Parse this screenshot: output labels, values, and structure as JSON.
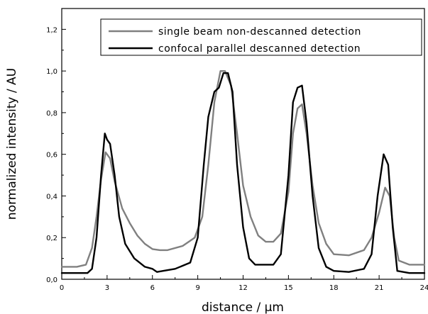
{
  "chart_data": {
    "type": "line",
    "xlabel": "distance / µm",
    "ylabel": "normalized intensity / AU",
    "xlim": [
      0,
      24
    ],
    "ylim": [
      0,
      1.3
    ],
    "x_ticks": [
      0,
      3,
      6,
      9,
      12,
      15,
      18,
      21,
      24
    ],
    "x_tick_labels": [
      "0",
      "3",
      "6",
      "9",
      "12",
      "15",
      "18",
      "21",
      "24"
    ],
    "y_ticks": [
      0.0,
      0.2,
      0.4,
      0.6,
      0.8,
      1.0,
      1.2
    ],
    "y_tick_labels": [
      "0,0",
      "0,2",
      "0,4",
      "0,6",
      "0,8",
      "1,0",
      "1,2"
    ],
    "legend_position": "top-right",
    "grid": false,
    "series": [
      {
        "name": "single beam non-descanned detection",
        "color": "#808080",
        "points": [
          [
            0,
            0.06
          ],
          [
            1.0,
            0.06
          ],
          [
            1.6,
            0.07
          ],
          [
            2.0,
            0.15
          ],
          [
            2.3,
            0.3
          ],
          [
            2.6,
            0.48
          ],
          [
            2.9,
            0.61
          ],
          [
            3.2,
            0.58
          ],
          [
            3.5,
            0.47
          ],
          [
            4.0,
            0.34
          ],
          [
            4.5,
            0.27
          ],
          [
            5.0,
            0.21
          ],
          [
            5.5,
            0.17
          ],
          [
            6.0,
            0.145
          ],
          [
            6.5,
            0.14
          ],
          [
            7.0,
            0.14
          ],
          [
            8.0,
            0.16
          ],
          [
            8.8,
            0.2
          ],
          [
            9.3,
            0.3
          ],
          [
            9.7,
            0.55
          ],
          [
            10.1,
            0.85
          ],
          [
            10.5,
            1.0
          ],
          [
            10.8,
            1.0
          ],
          [
            11.2,
            0.93
          ],
          [
            11.6,
            0.7
          ],
          [
            12.0,
            0.45
          ],
          [
            12.5,
            0.3
          ],
          [
            13.0,
            0.21
          ],
          [
            13.5,
            0.18
          ],
          [
            14.0,
            0.18
          ],
          [
            14.5,
            0.22
          ],
          [
            15.0,
            0.42
          ],
          [
            15.3,
            0.7
          ],
          [
            15.6,
            0.82
          ],
          [
            15.9,
            0.84
          ],
          [
            16.2,
            0.7
          ],
          [
            16.6,
            0.45
          ],
          [
            17.0,
            0.27
          ],
          [
            17.5,
            0.17
          ],
          [
            18.0,
            0.12
          ],
          [
            19.0,
            0.115
          ],
          [
            20.0,
            0.14
          ],
          [
            20.5,
            0.2
          ],
          [
            21.0,
            0.32
          ],
          [
            21.4,
            0.44
          ],
          [
            21.7,
            0.4
          ],
          [
            22.0,
            0.2
          ],
          [
            22.3,
            0.09
          ],
          [
            23.0,
            0.07
          ],
          [
            24,
            0.07
          ]
        ]
      },
      {
        "name": "confocal parallel descanned detection",
        "color": "#000000",
        "points": [
          [
            0,
            0.03
          ],
          [
            1.7,
            0.03
          ],
          [
            2.0,
            0.05
          ],
          [
            2.3,
            0.2
          ],
          [
            2.6,
            0.5
          ],
          [
            2.85,
            0.7
          ],
          [
            3.0,
            0.67
          ],
          [
            3.2,
            0.65
          ],
          [
            3.5,
            0.5
          ],
          [
            3.8,
            0.3
          ],
          [
            4.2,
            0.17
          ],
          [
            4.8,
            0.1
          ],
          [
            5.5,
            0.06
          ],
          [
            6.0,
            0.05
          ],
          [
            6.3,
            0.035
          ],
          [
            6.7,
            0.04
          ],
          [
            7.5,
            0.05
          ],
          [
            8.5,
            0.08
          ],
          [
            9.0,
            0.2
          ],
          [
            9.4,
            0.55
          ],
          [
            9.7,
            0.78
          ],
          [
            10.1,
            0.9
          ],
          [
            10.4,
            0.92
          ],
          [
            10.7,
            0.99
          ],
          [
            11.0,
            0.99
          ],
          [
            11.3,
            0.9
          ],
          [
            11.6,
            0.55
          ],
          [
            12.0,
            0.25
          ],
          [
            12.4,
            0.1
          ],
          [
            12.8,
            0.07
          ],
          [
            14.0,
            0.07
          ],
          [
            14.5,
            0.12
          ],
          [
            15.0,
            0.5
          ],
          [
            15.3,
            0.85
          ],
          [
            15.6,
            0.92
          ],
          [
            15.9,
            0.93
          ],
          [
            16.2,
            0.75
          ],
          [
            16.6,
            0.4
          ],
          [
            17.0,
            0.15
          ],
          [
            17.5,
            0.06
          ],
          [
            18.0,
            0.04
          ],
          [
            19.0,
            0.035
          ],
          [
            20.0,
            0.05
          ],
          [
            20.5,
            0.12
          ],
          [
            20.9,
            0.4
          ],
          [
            21.3,
            0.6
          ],
          [
            21.6,
            0.55
          ],
          [
            21.9,
            0.25
          ],
          [
            22.2,
            0.04
          ],
          [
            23.0,
            0.03
          ],
          [
            24,
            0.03
          ]
        ]
      }
    ]
  }
}
